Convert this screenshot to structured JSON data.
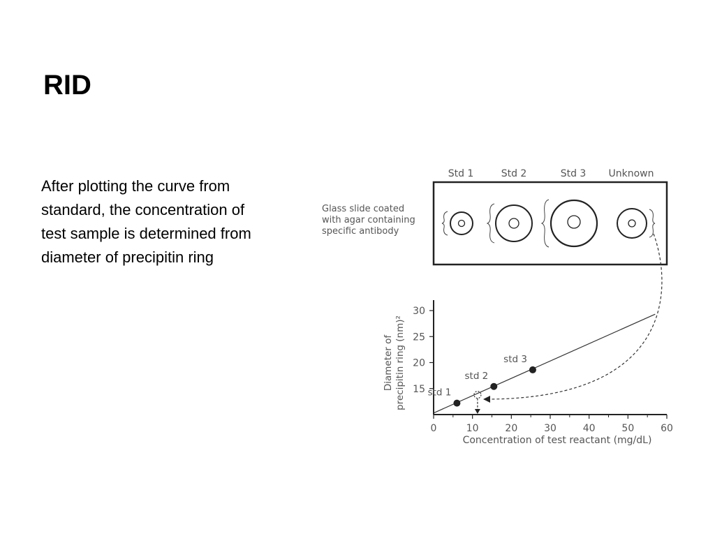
{
  "slide": {
    "title": "RID",
    "body": "After plotting the curve from standard, the concentration of test sample is determined from diameter of precipitin ring"
  },
  "figure": {
    "well_labels": [
      "Std 1",
      "Std 2",
      "Std 3",
      "Unknown"
    ],
    "slide_label_lines": [
      "Glass slide coated",
      "with agar containing",
      "specific antibody"
    ]
  },
  "chart_data": {
    "type": "scatter",
    "ylabel_lines": [
      "Diameter of",
      "precipitin ring (nm)²"
    ],
    "xlabel": "Concentration of test reactant (mg/dL)",
    "xlim": [
      0,
      60
    ],
    "ylim": [
      10,
      30
    ],
    "xticks": [
      0,
      10,
      20,
      30,
      40,
      50,
      60
    ],
    "yticks": [
      15,
      20,
      25,
      30
    ],
    "points": [
      {
        "label": "std 1",
        "x": 6,
        "y": 12.2
      },
      {
        "label": "std 2",
        "x": 15.5,
        "y": 15.4
      },
      {
        "label": "std 3",
        "x": 25.5,
        "y": 18.6
      }
    ],
    "line": {
      "x": [
        0,
        57
      ],
      "y": [
        10.3,
        29.3
      ]
    },
    "unknown": {
      "x": 11.3,
      "y": 13.8
    },
    "grid": false
  }
}
